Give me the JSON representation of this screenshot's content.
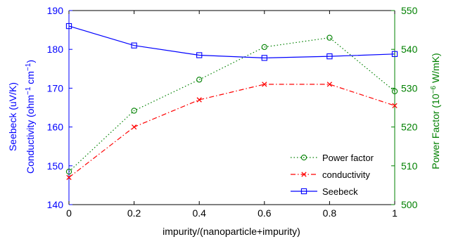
{
  "chart_data": {
    "type": "line",
    "x": [
      0,
      0.2,
      0.4,
      0.6,
      0.8,
      1
    ],
    "xlabel": "impurity/(nanoparticle+impurity)",
    "xlim": [
      0,
      1
    ],
    "x_ticks": [
      "0",
      "0.2",
      "0.4",
      "0.6",
      "0.8",
      "1"
    ],
    "left_axis": {
      "label_line1": "Seebeck (uV/K)",
      "label_line2": {
        "pre": "Conductivity (ohm",
        "sup1": "−1",
        "mid": " cm",
        "sup2": "−1",
        "post": ")"
      },
      "ylim": [
        140,
        190
      ],
      "ticks": [
        "140",
        "150",
        "160",
        "170",
        "180",
        "190"
      ],
      "color": "#0000ff"
    },
    "right_axis": {
      "label": {
        "pre": "Power Factor (10",
        "sup": "−6",
        "post": " W/mK)"
      },
      "ylim": [
        500,
        550
      ],
      "ticks": [
        "500",
        "510",
        "520",
        "530",
        "540",
        "550"
      ],
      "color": "#008000"
    },
    "series": [
      {
        "name": "Power factor",
        "axis": "right",
        "color": "#008000",
        "linestyle": "dotted",
        "marker": "circle",
        "values": [
          508.5,
          524.2,
          532.2,
          540.6,
          543.0,
          529.2
        ]
      },
      {
        "name": "conductivity",
        "axis": "left",
        "color": "#ff0000",
        "linestyle": "dashdot",
        "marker": "x",
        "values": [
          147.0,
          160.0,
          167.0,
          171.0,
          171.0,
          165.5
        ]
      },
      {
        "name": "Seebeck",
        "axis": "left",
        "color": "#0000ff",
        "linestyle": "solid",
        "marker": "square",
        "values": [
          186.0,
          181.0,
          178.5,
          177.8,
          178.2,
          178.8
        ]
      }
    ],
    "legend_position": "lower-right",
    "grid": false
  }
}
